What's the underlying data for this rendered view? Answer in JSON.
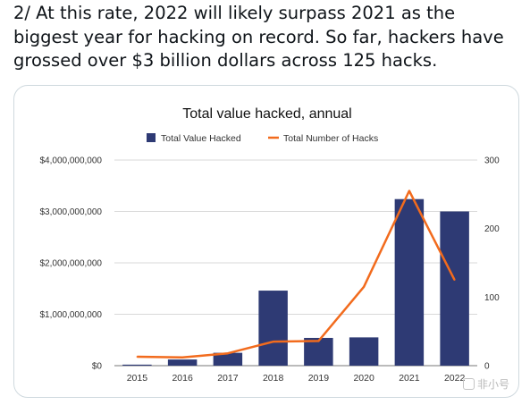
{
  "tweet": {
    "text": "2/ At this rate, 2022 will likely surpass 2021 as the biggest year for hacking on record. So far, hackers have grossed over $3 billion dollars across 125 hacks."
  },
  "watermark": {
    "text": "非小号",
    "icon": "logo-icon"
  },
  "chart_data": {
    "type": "bar",
    "title": "Total value hacked, annual",
    "categories": [
      "2015",
      "2016",
      "2017",
      "2018",
      "2019",
      "2020",
      "2021",
      "2022"
    ],
    "series": [
      {
        "name": "Total Value Hacked",
        "type": "bar",
        "axis": "left",
        "color": "#2e3a74",
        "values": [
          20000000,
          120000000,
          250000000,
          1460000000,
          540000000,
          550000000,
          3240000000,
          3000000000
        ]
      },
      {
        "name": "Total Number of Hacks",
        "type": "line",
        "axis": "right",
        "color": "#f26b1d",
        "values": [
          13,
          12,
          18,
          35,
          36,
          115,
          255,
          125
        ]
      }
    ],
    "ylim": [
      0,
      4000000000
    ],
    "y2lim": [
      0,
      300
    ],
    "yticks": [
      "$0",
      "$1,000,000,000",
      "$2,000,000,000",
      "$3,000,000,000",
      "$4,000,000,000"
    ],
    "y2ticks": [
      "0",
      "100",
      "200",
      "300"
    ],
    "grid": true,
    "legend": "top-center"
  }
}
